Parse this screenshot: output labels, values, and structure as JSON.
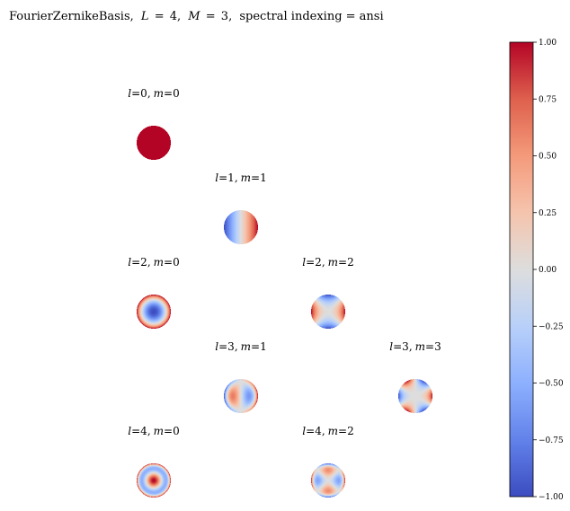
{
  "chart_data": {
    "type": "heatmap",
    "title": "FourierZernikeBasis, L = 4, M = 3, spectral indexing = ansi",
    "title_parts": {
      "name": "FourierZernikeBasis,",
      "L_var": "L",
      "L_value": "4,",
      "M_var": "M",
      "M_value": "3,",
      "indexing": "spectral indexing = ansi",
      "eq": "="
    },
    "panel_label_parts": {
      "l_var": "l",
      "m_var": "m",
      "eq": "=",
      "sep": ","
    },
    "colormap": "coolwarm",
    "colorbar": {
      "range": [
        -1.0,
        1.0
      ],
      "ticks": [
        1.0,
        0.75,
        0.5,
        0.25,
        0.0,
        -0.25,
        -0.5,
        -0.75,
        -1.0
      ],
      "tick_labels": [
        "1.00",
        "0.75",
        "0.50",
        "0.25",
        "0.00",
        "−0.25",
        "−0.50",
        "−0.75",
        "−1.00"
      ]
    },
    "panels": [
      {
        "l": 0,
        "m": 0,
        "l_text": "0",
        "m_text": "0",
        "row": 0,
        "col": 0
      },
      {
        "l": 1,
        "m": 1,
        "l_text": "1",
        "m_text": "1",
        "row": 1,
        "col": 1
      },
      {
        "l": 2,
        "m": 0,
        "l_text": "2",
        "m_text": "0",
        "row": 2,
        "col": 0
      },
      {
        "l": 2,
        "m": 2,
        "l_text": "2",
        "m_text": "2",
        "row": 2,
        "col": 2
      },
      {
        "l": 3,
        "m": 1,
        "l_text": "3",
        "m_text": "1",
        "row": 3,
        "col": 1
      },
      {
        "l": 3,
        "m": 3,
        "l_text": "3",
        "m_text": "3",
        "row": 3,
        "col": 3
      },
      {
        "l": 4,
        "m": 0,
        "l_text": "4",
        "m_text": "0",
        "row": 4,
        "col": 0
      },
      {
        "l": 4,
        "m": 2,
        "l_text": "4",
        "m_text": "2",
        "row": 4,
        "col": 2
      }
    ]
  }
}
